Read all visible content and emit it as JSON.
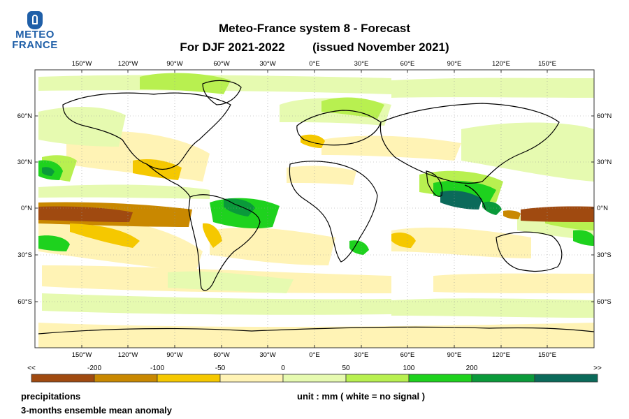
{
  "logo": {
    "line1": "METEO",
    "line2": "FRANCE"
  },
  "title": {
    "line1": "Meteo-France system 8  -  Forecast",
    "line2_left": "For DJF 2021-2022",
    "line2_right": "(issued November 2021)"
  },
  "axes": {
    "lon_labels": [
      "150°W",
      "120°W",
      "90°W",
      "60°W",
      "30°W",
      "0°E",
      "30°E",
      "60°E",
      "90°E",
      "120°E",
      "150°E"
    ],
    "lat_labels": [
      "60°N",
      "30°N",
      "0°N",
      "30°S",
      "60°S"
    ]
  },
  "legend": {
    "end_left": "<<",
    "end_right": ">>",
    "tick_labels": [
      "-200",
      "-100",
      "-50",
      "0",
      "50",
      "100",
      "200"
    ],
    "colors": [
      "#a04a10",
      "#c98800",
      "#f5c800",
      "#fff3b5",
      "#e6fab0",
      "#b8f050",
      "#1ed21e",
      "#0a9a3a",
      "#0b6a5a"
    ]
  },
  "footer": {
    "variable": "precipitations",
    "description": "3-months ensemble mean anomaly",
    "unit": "unit : mm  ( white = no signal )"
  },
  "colors": {
    "title_text": "#000000",
    "logo_blue": "#1f5fa8",
    "gridline": "#999999",
    "coastline": "#000000",
    "border": "#333333"
  }
}
